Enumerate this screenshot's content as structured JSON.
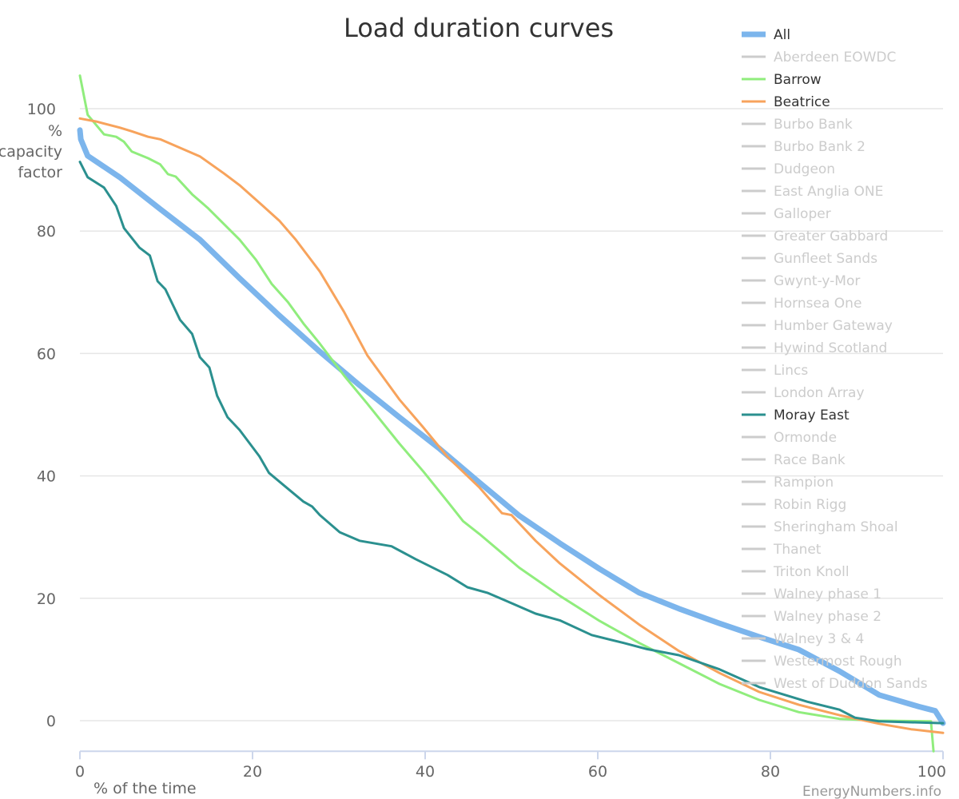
{
  "chart_data": {
    "type": "line",
    "title": "Load duration curves",
    "xlabel": "% of the time",
    "ylabel": [
      "%",
      "capacity",
      "factor"
    ],
    "credit": "EnergyNumbers.info",
    "xlim": [
      0,
      100
    ],
    "ylim": [
      -5,
      110
    ],
    "xticks": [
      0,
      20,
      40,
      60,
      80,
      100
    ],
    "yticks": [
      0,
      20,
      40,
      60,
      80,
      100
    ],
    "grid": true,
    "legend_position": "right",
    "series": [
      {
        "name": "All",
        "color": "#7cb5ec",
        "visible": true,
        "width": 7,
        "x": [
          0,
          0.1,
          0.9,
          4.6,
          9.3,
          13.9,
          18.5,
          23.1,
          27.8,
          32.4,
          37,
          41.7,
          46.3,
          50.9,
          55.6,
          60.2,
          64.8,
          69.4,
          74.1,
          78.7,
          83.3,
          88,
          92.6,
          97.2,
          99.1,
          100
        ],
        "y": [
          96.5,
          95,
          92.3,
          88.8,
          83.6,
          78.6,
          72.3,
          66.2,
          60.3,
          54.8,
          49.6,
          44.4,
          38.9,
          33.5,
          29,
          24.8,
          20.9,
          18.3,
          15.9,
          13.7,
          11.6,
          8.1,
          4.2,
          2.3,
          1.6,
          -0.4
        ]
      },
      {
        "name": "Barrow",
        "color": "#90ed7d",
        "visible": true,
        "width": 3,
        "x": [
          0,
          0.9,
          2.8,
          4.2,
          5.1,
          6,
          7.9,
          9.3,
          10.2,
          11.1,
          13,
          14.8,
          18.5,
          20.4,
          22.2,
          24.1,
          25.9,
          27.8,
          30.6,
          33.3,
          37,
          39.8,
          42.6,
          44.4,
          46.3,
          50.9,
          55.6,
          60.2,
          64.8,
          69.4,
          74.1,
          78.7,
          83.3,
          88,
          92.6,
          98.6,
          98.9
        ],
        "y": [
          105.4,
          99,
          95.8,
          95.4,
          94.6,
          93,
          91.9,
          90.9,
          89.3,
          88.9,
          86,
          83.8,
          78.6,
          75.3,
          71.4,
          68.4,
          64.9,
          61.6,
          56.4,
          51.8,
          45.3,
          40.7,
          35.8,
          32.6,
          30.5,
          25,
          20.4,
          16.3,
          12.7,
          9.4,
          6,
          3.4,
          1.4,
          0.3,
          0,
          -0.1,
          -5
        ]
      },
      {
        "name": "Beatrice",
        "color": "#f7a35c",
        "visible": true,
        "width": 3,
        "x": [
          0,
          1.9,
          4.6,
          6,
          7.9,
          9.3,
          13.9,
          16.7,
          18.5,
          21.3,
          23.1,
          25,
          27.8,
          30.6,
          33.3,
          37,
          39.8,
          42.6,
          46.3,
          48.9,
          50,
          52.8,
          55.6,
          60.2,
          64.8,
          69.4,
          74.1,
          78.7,
          83.3,
          88,
          92.6,
          96.3,
          100
        ],
        "y": [
          98.4,
          97.9,
          96.9,
          96.3,
          95.4,
          95,
          92.2,
          89.4,
          87.5,
          84,
          81.7,
          78.6,
          73.4,
          66.8,
          59.7,
          52.5,
          47.9,
          43.1,
          38.1,
          33.9,
          33.6,
          29.4,
          25.7,
          20.5,
          15.7,
          11.4,
          7.8,
          4.7,
          2.6,
          0.9,
          -0.5,
          -1.4,
          -2
        ]
      },
      {
        "name": "Moray East",
        "color": "#2b908f",
        "visible": true,
        "width": 3,
        "x": [
          0,
          0.9,
          2.8,
          4.2,
          5.1,
          6.9,
          8.1,
          9,
          9.9,
          11.6,
          13,
          13.9,
          15,
          15.9,
          17.1,
          18.5,
          20.8,
          21.9,
          24.1,
          25.9,
          26.9,
          27.8,
          30.1,
          32.4,
          36.1,
          38.9,
          42.6,
          44.9,
          47.2,
          50,
          52.8,
          55.6,
          59.3,
          63,
          65.7,
          69.4,
          74.1,
          78.7,
          82.4,
          84.3,
          88,
          89.8,
          92.6,
          100
        ],
        "y": [
          91.3,
          88.8,
          87.1,
          84.1,
          80.5,
          77.3,
          76,
          71.8,
          70.5,
          65.5,
          63.2,
          59.4,
          57.7,
          53.1,
          49.6,
          47.5,
          43.2,
          40.5,
          37.9,
          35.8,
          35,
          33.6,
          30.8,
          29.4,
          28.5,
          26.4,
          23.8,
          21.8,
          20.9,
          19.2,
          17.5,
          16.4,
          14,
          12.7,
          11.7,
          10.7,
          8.4,
          5.5,
          3.9,
          3.1,
          1.8,
          0.5,
          -0.1,
          -0.4
        ]
      }
    ],
    "legend": [
      {
        "name": "All",
        "visible": true,
        "color": "#7cb5ec"
      },
      {
        "name": "Aberdeen EOWDC",
        "visible": false
      },
      {
        "name": "Barrow",
        "visible": true,
        "color": "#90ed7d"
      },
      {
        "name": "Beatrice",
        "visible": true,
        "color": "#f7a35c"
      },
      {
        "name": "Burbo Bank",
        "visible": false
      },
      {
        "name": "Burbo Bank 2",
        "visible": false
      },
      {
        "name": "Dudgeon",
        "visible": false
      },
      {
        "name": "East Anglia ONE",
        "visible": false
      },
      {
        "name": "Galloper",
        "visible": false
      },
      {
        "name": "Greater Gabbard",
        "visible": false
      },
      {
        "name": "Gunfleet Sands",
        "visible": false
      },
      {
        "name": "Gwynt-y-Mor",
        "visible": false
      },
      {
        "name": "Hornsea One",
        "visible": false
      },
      {
        "name": "Humber Gateway",
        "visible": false
      },
      {
        "name": "Hywind Scotland",
        "visible": false
      },
      {
        "name": "Lincs",
        "visible": false
      },
      {
        "name": "London Array",
        "visible": false
      },
      {
        "name": "Moray East",
        "visible": true,
        "color": "#2b908f"
      },
      {
        "name": "Ormonde",
        "visible": false
      },
      {
        "name": "Race Bank",
        "visible": false
      },
      {
        "name": "Rampion",
        "visible": false
      },
      {
        "name": "Robin Rigg",
        "visible": false
      },
      {
        "name": "Sheringham Shoal",
        "visible": false
      },
      {
        "name": "Thanet",
        "visible": false
      },
      {
        "name": "Triton Knoll",
        "visible": false
      },
      {
        "name": "Walney phase 1",
        "visible": false
      },
      {
        "name": "Walney phase 2",
        "visible": false
      },
      {
        "name": "Walney 3 & 4",
        "visible": false
      },
      {
        "name": "Westermost Rough",
        "visible": false
      },
      {
        "name": "West of Duddon Sands",
        "visible": false
      }
    ]
  }
}
